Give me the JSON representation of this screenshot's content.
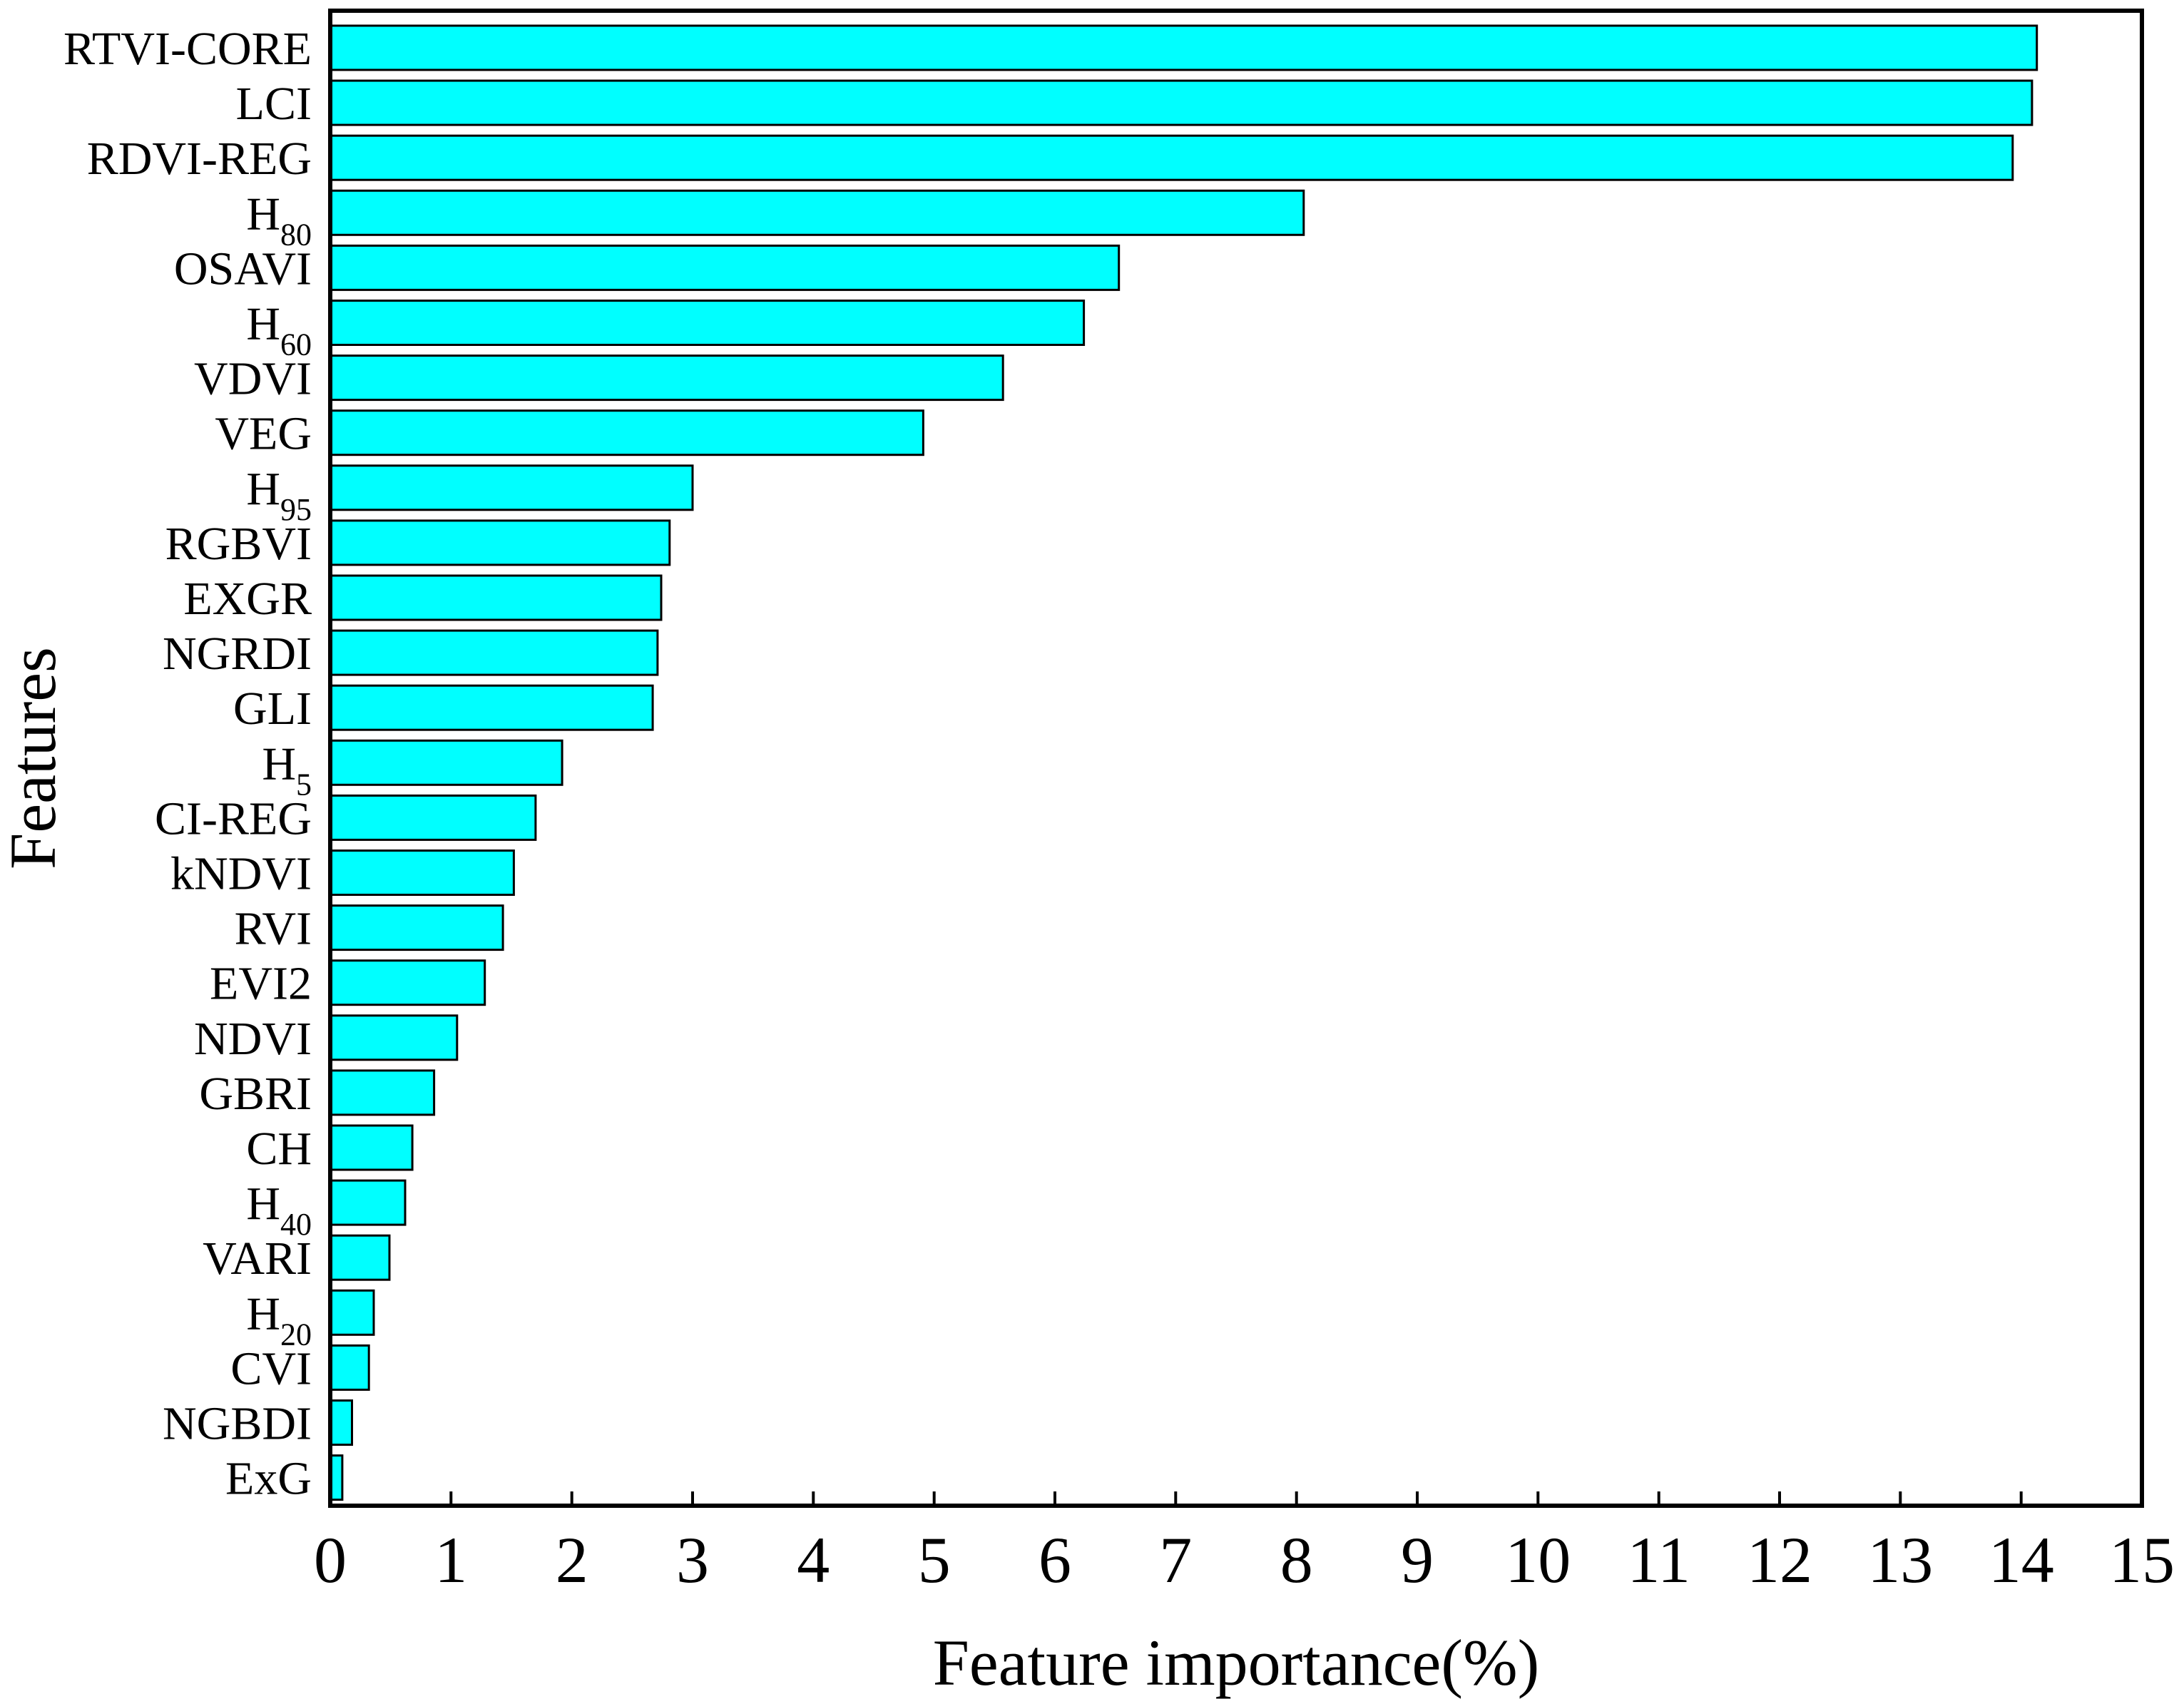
{
  "chart_data": {
    "type": "bar",
    "orientation": "horizontal",
    "xlabel": "Feature importance(%)",
    "ylabel": "Features",
    "xlim": [
      0,
      15
    ],
    "xticks": [
      0,
      1,
      2,
      3,
      4,
      5,
      6,
      7,
      8,
      9,
      10,
      11,
      12,
      13,
      14,
      15
    ],
    "grid": false,
    "bar_color": "#00FFFF",
    "bar_edge_color": "#000000",
    "categories": [
      {
        "base": "RTVI-CORE",
        "sub": ""
      },
      {
        "base": "LCI",
        "sub": ""
      },
      {
        "base": "RDVI-REG",
        "sub": ""
      },
      {
        "base": "H",
        "sub": "80"
      },
      {
        "base": "OSAVI",
        "sub": ""
      },
      {
        "base": "H",
        "sub": "60"
      },
      {
        "base": "VDVI",
        "sub": ""
      },
      {
        "base": "VEG",
        "sub": ""
      },
      {
        "base": "H",
        "sub": "95"
      },
      {
        "base": "RGBVI",
        "sub": ""
      },
      {
        "base": "EXGR",
        "sub": ""
      },
      {
        "base": "NGRDI",
        "sub": ""
      },
      {
        "base": "GLI",
        "sub": ""
      },
      {
        "base": "H",
        "sub": "5"
      },
      {
        "base": "CI-REG",
        "sub": ""
      },
      {
        "base": "kNDVI",
        "sub": ""
      },
      {
        "base": "RVI",
        "sub": ""
      },
      {
        "base": "EVI2",
        "sub": ""
      },
      {
        "base": "NDVI",
        "sub": ""
      },
      {
        "base": "GBRI",
        "sub": ""
      },
      {
        "base": "CH",
        "sub": ""
      },
      {
        "base": "H",
        "sub": "40"
      },
      {
        "base": "VARI",
        "sub": ""
      },
      {
        "base": "H",
        "sub": "20"
      },
      {
        "base": "CVI",
        "sub": ""
      },
      {
        "base": "NGBDI",
        "sub": ""
      },
      {
        "base": "ExG",
        "sub": ""
      }
    ],
    "values": [
      14.13,
      14.09,
      13.93,
      8.06,
      6.53,
      6.24,
      5.57,
      4.91,
      3.0,
      2.81,
      2.74,
      2.71,
      2.67,
      1.92,
      1.7,
      1.52,
      1.43,
      1.28,
      1.05,
      0.86,
      0.68,
      0.62,
      0.49,
      0.36,
      0.32,
      0.18,
      0.1
    ]
  }
}
